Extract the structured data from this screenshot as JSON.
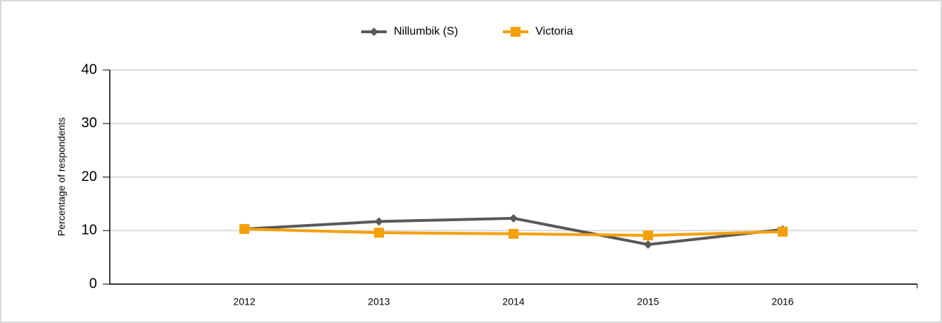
{
  "chart_data": {
    "type": "line",
    "y_label": "Percentage of respondents",
    "categories": [
      "2012",
      "2013",
      "2014",
      "2015",
      "2016"
    ],
    "series": [
      {
        "name": "Nillumbik (S)",
        "color": "#595959",
        "marker": "diamond",
        "values": [
          10.3,
          11.7,
          12.3,
          7.4,
          10.2
        ]
      },
      {
        "name": "Victoria",
        "color": "#f5a00a",
        "marker": "square",
        "values": [
          10.3,
          9.6,
          9.4,
          9.1,
          9.8
        ]
      }
    ],
    "ylim": [
      0,
      40
    ],
    "yticks": [
      0,
      10,
      20,
      30,
      40
    ],
    "grid": true,
    "legend": "top"
  }
}
